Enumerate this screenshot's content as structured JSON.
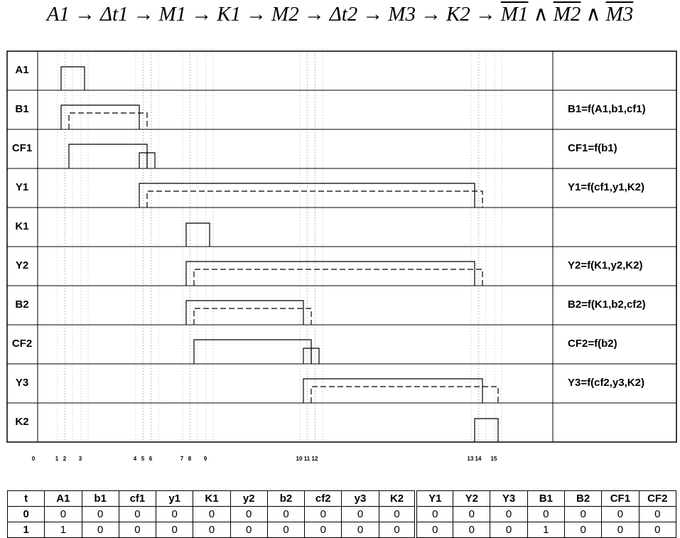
{
  "formula": {
    "sequence": [
      "A1",
      "Δt1",
      "M1",
      "K1",
      "M2",
      "Δt2",
      "M3",
      "K2"
    ],
    "arrow": "→",
    "negated": [
      "M1",
      "M2",
      "M3"
    ],
    "conjunction": "∧"
  },
  "rows": [
    {
      "label": "A1"
    },
    {
      "label": "B1",
      "function": "B1=f(A1,b1,cf1)"
    },
    {
      "label": "CF1",
      "function": "CF1=f(b1)"
    },
    {
      "label": "Y1",
      "function": "Y1=f(cf1,y1,K2)"
    },
    {
      "label": "K1"
    },
    {
      "label": "Y2",
      "function": "Y2=f(K1,y2,K2)"
    },
    {
      "label": "B2",
      "function": "B2=f(K1,b2,cf2)"
    },
    {
      "label": "CF2",
      "function": "CF2=f(b2)"
    },
    {
      "label": "Y3",
      "function": "Y3=f(cf2,y3,K2)"
    },
    {
      "label": "K2"
    }
  ],
  "time_labels": [
    0,
    1,
    2,
    3,
    4,
    5,
    6,
    7,
    8,
    9,
    10,
    11,
    12,
    13,
    14,
    15
  ],
  "table": {
    "header": [
      "t",
      "A1",
      "b1",
      "cf1",
      "y1",
      "K1",
      "y2",
      "b2",
      "cf2",
      "y3",
      "K2",
      "Y1",
      "Y2",
      "Y3",
      "B1",
      "B2",
      "CF1",
      "CF2"
    ],
    "rows": [
      [
        0,
        0,
        0,
        0,
        0,
        0,
        0,
        0,
        0,
        0,
        0,
        0,
        0,
        0,
        0,
        0,
        0,
        0
      ],
      [
        1,
        1,
        0,
        0,
        0,
        0,
        0,
        0,
        0,
        0,
        0,
        0,
        0,
        0,
        1,
        0,
        0,
        0
      ]
    ]
  }
}
